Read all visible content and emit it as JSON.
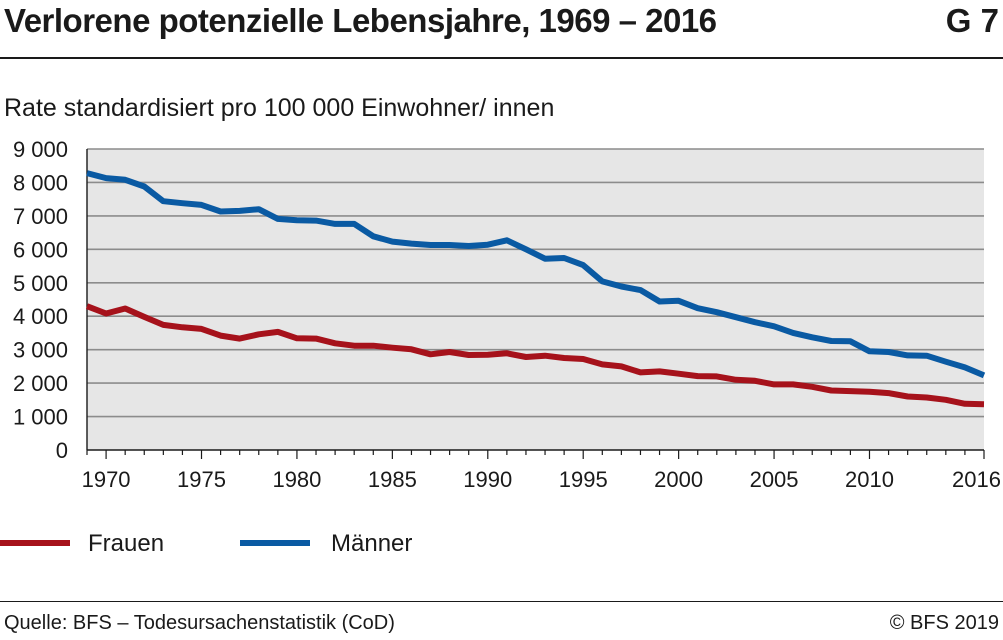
{
  "header": {
    "title": "Verlorene potenzielle Lebensjahre, 1969 – 2016",
    "figure_number": "G 7"
  },
  "footer": {
    "source": "Quelle: BFS – Todesursachenstatistik (CoD)",
    "copyright": "© BFS 2019"
  },
  "colors": {
    "frauen": "#a6121b",
    "maenner": "#0a5aa3",
    "plot_bg": "#e6e6e6",
    "grid": "#8c8c8c"
  },
  "chart_data": {
    "type": "line",
    "title": "Verlorene potenzielle Lebensjahre, 1969 – 2016",
    "ylabel": "Rate standardisiert pro 100 000 Einwohner/ innen",
    "xlabel": "",
    "ylim": [
      0,
      9000
    ],
    "xlim": [
      1969,
      2016
    ],
    "grid": true,
    "legend_position": "bottom-left",
    "yticks": [
      0,
      1000,
      2000,
      3000,
      4000,
      5000,
      6000,
      7000,
      8000,
      9000
    ],
    "ytick_labels": [
      "0",
      "1 000",
      "2 000",
      "3 000",
      "4 000",
      "5 000",
      "6 000",
      "7 000",
      "8 000",
      "9 000"
    ],
    "xticks": [
      1970,
      1975,
      1980,
      1985,
      1990,
      1995,
      2000,
      2005,
      2010,
      2016
    ],
    "xtick_labels": [
      "1970",
      "1975",
      "1980",
      "1985",
      "1990",
      "1995",
      "2000",
      "2005",
      "2010",
      "2016"
    ],
    "x": [
      1969,
      1970,
      1971,
      1972,
      1973,
      1974,
      1975,
      1976,
      1977,
      1978,
      1979,
      1980,
      1981,
      1982,
      1983,
      1984,
      1985,
      1986,
      1987,
      1988,
      1989,
      1990,
      1991,
      1992,
      1993,
      1994,
      1995,
      1996,
      1997,
      1998,
      1999,
      2000,
      2001,
      2002,
      2003,
      2004,
      2005,
      2006,
      2007,
      2008,
      2009,
      2010,
      2011,
      2012,
      2013,
      2014,
      2015,
      2016
    ],
    "series": [
      {
        "name": "Frauen",
        "color": "#a6121b",
        "values": [
          4300,
          4080,
          4230,
          3980,
          3740,
          3670,
          3620,
          3420,
          3330,
          3460,
          3530,
          3340,
          3330,
          3190,
          3120,
          3120,
          3060,
          3010,
          2860,
          2930,
          2840,
          2850,
          2890,
          2780,
          2820,
          2750,
          2720,
          2560,
          2500,
          2320,
          2350,
          2280,
          2210,
          2200,
          2100,
          2070,
          1960,
          1960,
          1890,
          1780,
          1760,
          1740,
          1700,
          1600,
          1570,
          1500,
          1380,
          1370
        ]
      },
      {
        "name": "Männer",
        "color": "#0a5aa3",
        "values": [
          8280,
          8130,
          8080,
          7880,
          7440,
          7380,
          7330,
          7130,
          7150,
          7200,
          6910,
          6870,
          6860,
          6760,
          6760,
          6390,
          6230,
          6170,
          6130,
          6130,
          6100,
          6140,
          6270,
          6000,
          5720,
          5740,
          5530,
          5040,
          4890,
          4780,
          4440,
          4460,
          4240,
          4120,
          3970,
          3820,
          3700,
          3500,
          3370,
          3260,
          3250,
          2950,
          2930,
          2830,
          2820,
          2640,
          2470,
          2230
        ]
      }
    ]
  }
}
